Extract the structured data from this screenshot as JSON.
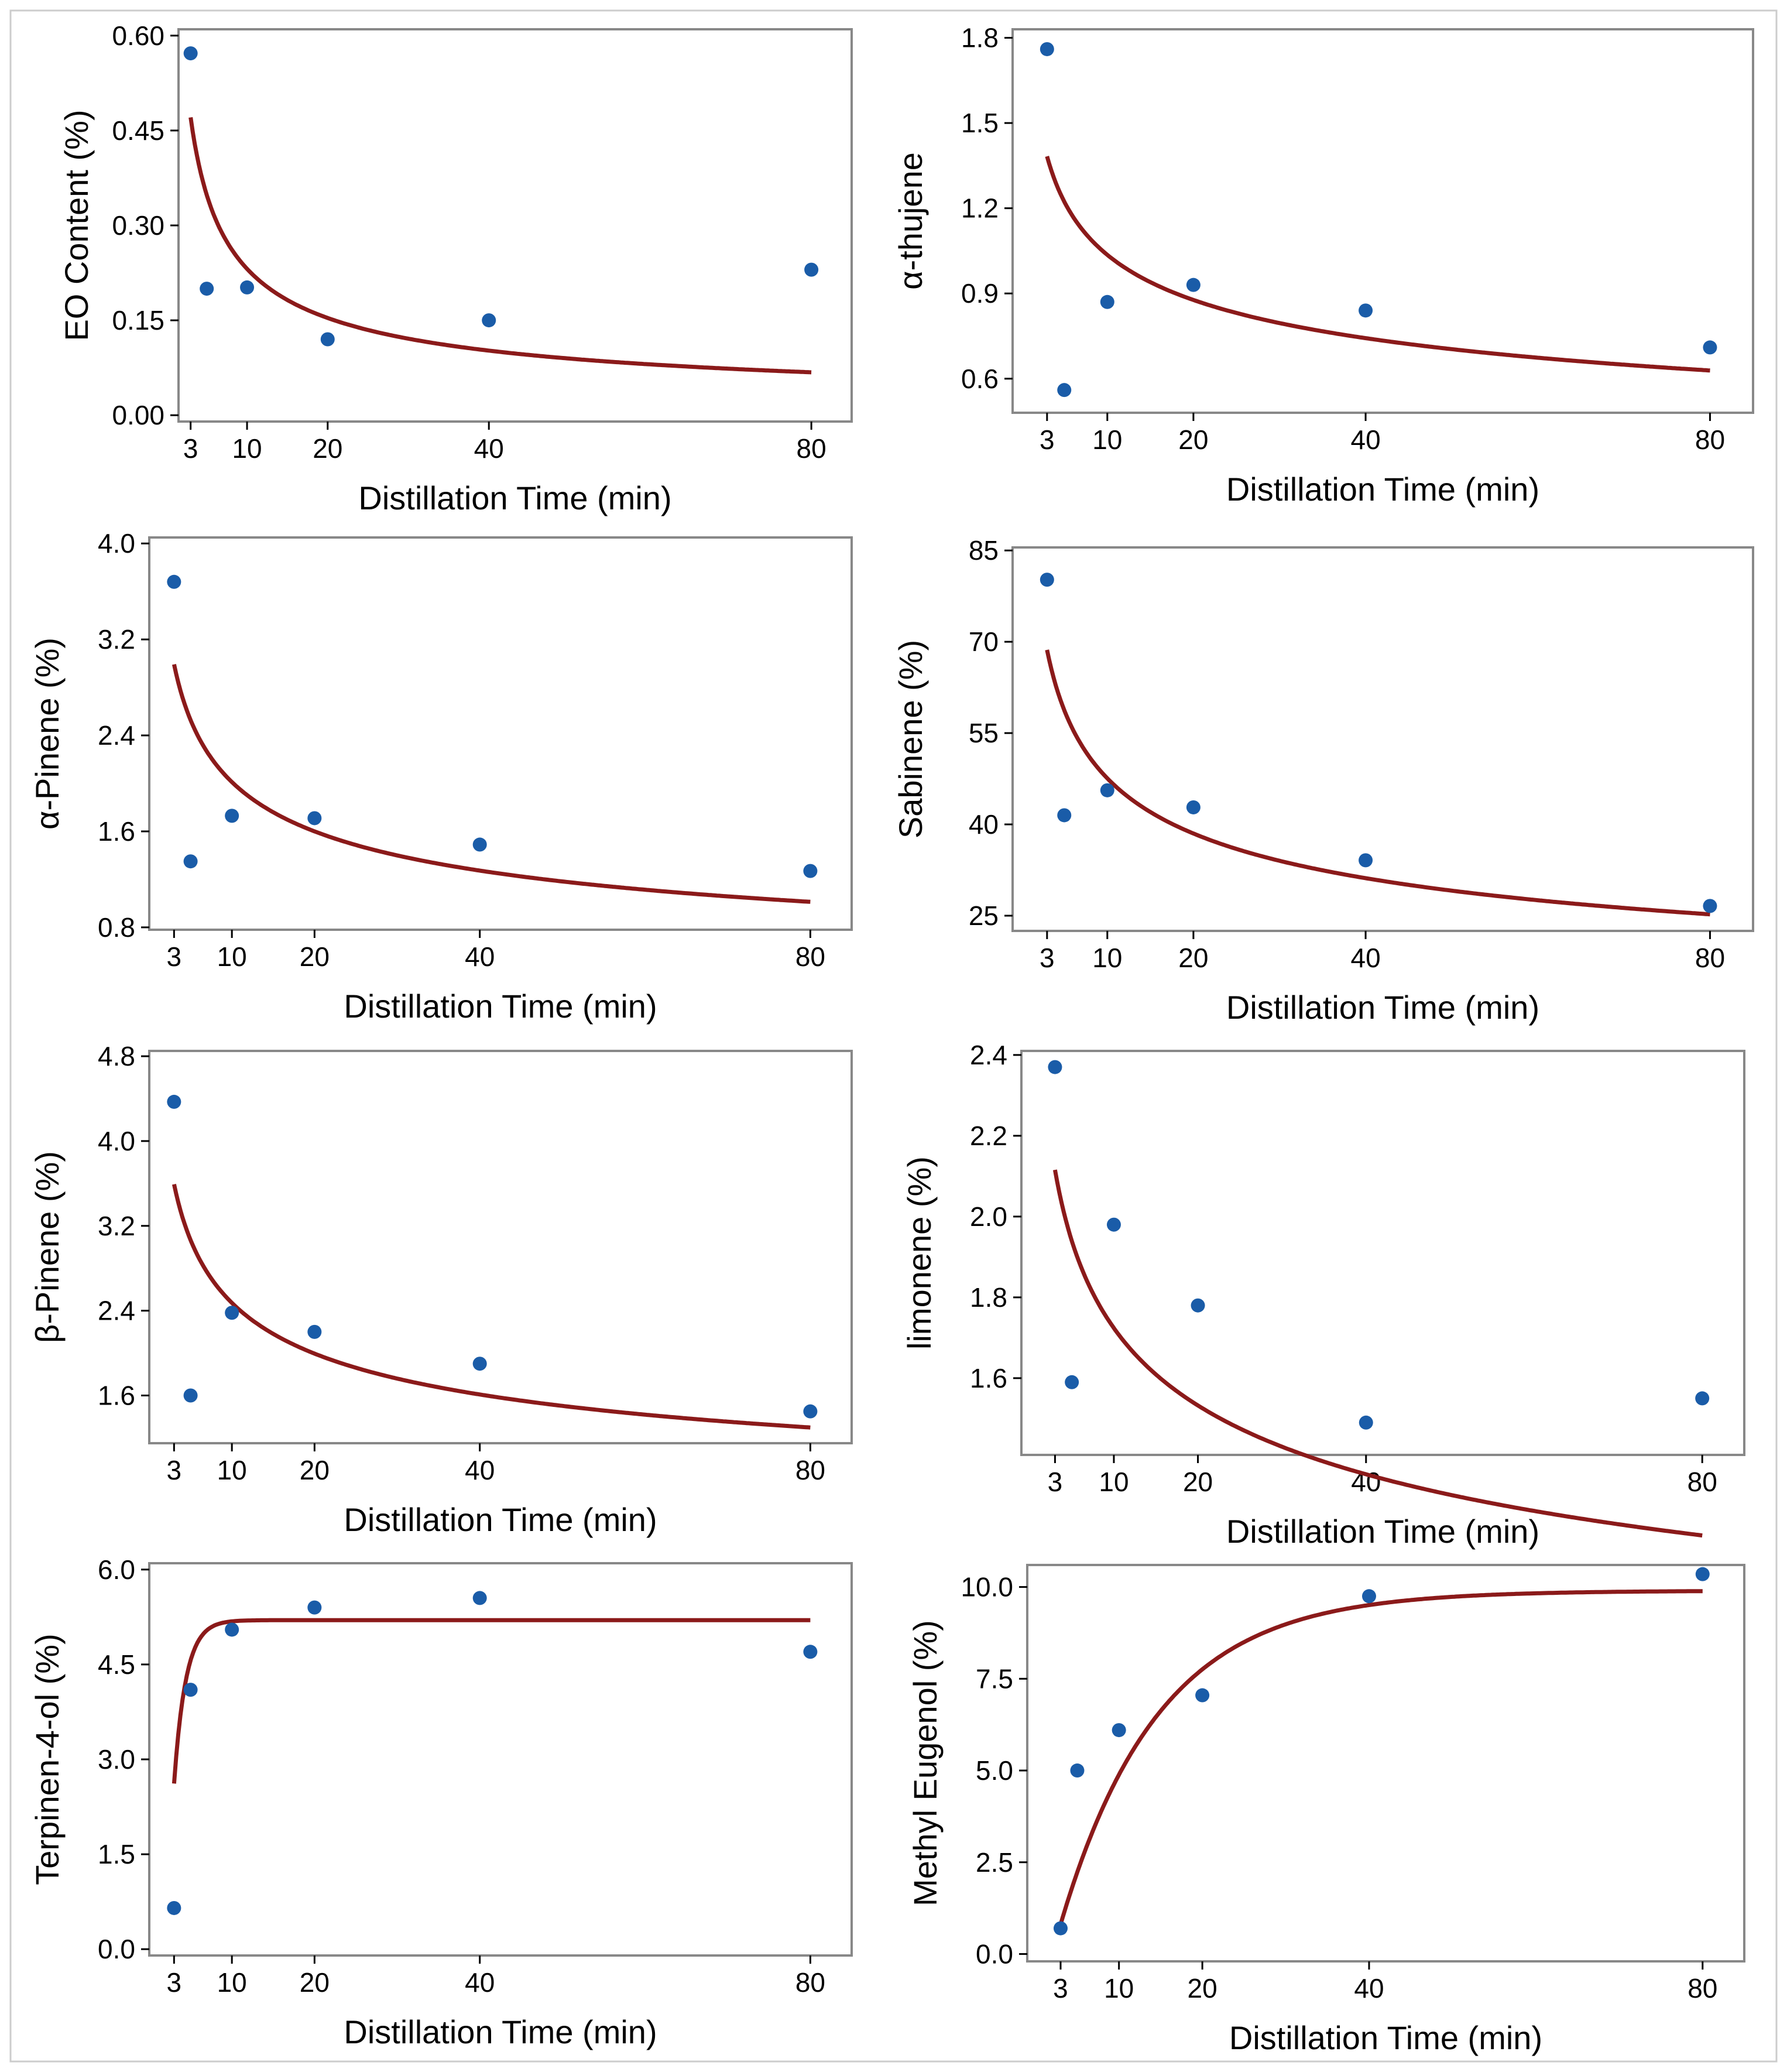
{
  "colors": {
    "points": "#1a5ca8",
    "fit_line": "#8b1a1a",
    "frame": "#888888",
    "background": "#ffffff"
  },
  "chart_data": [
    {
      "type": "scatter",
      "ylabel": "EO Content (%)",
      "xlabel": "Distillation Time (min)",
      "xticks": [
        3,
        10,
        20,
        40,
        80
      ],
      "yticks": [
        0.0,
        0.15,
        0.3,
        0.45,
        0.6
      ],
      "ytick_labels": [
        "0.00",
        "0.15",
        "0.30",
        "0.45",
        "0.60"
      ],
      "xlim": [
        1.5,
        85
      ],
      "ylim": [
        -0.01,
        0.61
      ],
      "x": [
        3,
        5,
        10,
        20,
        40,
        80
      ],
      "y": [
        0.572,
        0.2,
        0.202,
        0.12,
        0.15,
        0.23
      ],
      "fit": {
        "model": "power",
        "a": 0.9,
        "b": -0.59,
        "x_range": [
          3,
          80
        ]
      }
    },
    {
      "type": "scatter",
      "ylabel": "α-thujene",
      "xlabel": "Distillation Time (min)",
      "xticks": [
        3,
        10,
        20,
        40,
        80
      ],
      "yticks": [
        0.6,
        0.9,
        1.2,
        1.5,
        1.8
      ],
      "ytick_labels": [
        "0.6",
        "0.9",
        "1.2",
        "1.5",
        "1.8"
      ],
      "xlim": [
        -1,
        85
      ],
      "ylim": [
        0.48,
        1.83
      ],
      "x": [
        3,
        5,
        10,
        20,
        40,
        80
      ],
      "y": [
        1.76,
        0.56,
        0.87,
        0.93,
        0.84,
        0.71
      ],
      "fit": {
        "model": "power",
        "a": 1.8,
        "b": -0.24,
        "x_range": [
          3,
          80
        ]
      }
    },
    {
      "type": "scatter",
      "ylabel": "α-Pinene (%)",
      "xlabel": "Distillation Time (min)",
      "xticks": [
        3,
        10,
        20,
        40,
        80
      ],
      "yticks": [
        0.8,
        1.6,
        2.4,
        3.2,
        4.0
      ],
      "ytick_labels": [
        "0.8",
        "1.6",
        "2.4",
        "3.2",
        "4.0"
      ],
      "xlim": [
        0,
        85
      ],
      "ylim": [
        0.78,
        4.05
      ],
      "x": [
        3,
        5,
        10,
        20,
        40,
        80
      ],
      "y": [
        3.68,
        1.35,
        1.73,
        1.71,
        1.49,
        1.27
      ],
      "fit": {
        "model": "power",
        "a": 4.3,
        "b": -0.33,
        "x_range": [
          3,
          80
        ]
      }
    },
    {
      "type": "scatter",
      "ylabel": "Sabinene (%)",
      "xlabel": "Distillation Time (min)",
      "xticks": [
        3,
        10,
        20,
        40,
        80
      ],
      "yticks": [
        25,
        40,
        55,
        70,
        85
      ],
      "ytick_labels": [
        "25",
        "40",
        "55",
        "70",
        "85"
      ],
      "xlim": [
        -1,
        85
      ],
      "ylim": [
        22.5,
        85.5
      ],
      "x": [
        3,
        5,
        10,
        20,
        40,
        80
      ],
      "y": [
        80.2,
        41.5,
        45.6,
        42.8,
        34.1,
        26.6
      ],
      "fit": {
        "model": "power",
        "a": 96,
        "b": -0.305,
        "x_range": [
          3,
          80
        ]
      }
    },
    {
      "type": "scatter",
      "ylabel": "β-Pinene (%)",
      "xlabel": "Distillation Time (min)",
      "xticks": [
        3,
        10,
        20,
        40,
        80
      ],
      "yticks": [
        1.6,
        2.4,
        3.2,
        4.0,
        4.8
      ],
      "ytick_labels": [
        "1.6",
        "2.4",
        "3.2",
        "4.0",
        "4.8"
      ],
      "xlim": [
        0,
        85
      ],
      "ylim": [
        1.15,
        4.85
      ],
      "x": [
        3,
        5,
        10,
        20,
        40,
        80
      ],
      "y": [
        4.37,
        1.6,
        2.38,
        2.2,
        1.9,
        1.45
      ],
      "fit": {
        "model": "power",
        "a": 5.05,
        "b": -0.31,
        "x_range": [
          3,
          80
        ]
      }
    },
    {
      "type": "scatter",
      "ylabel": "limonene (%)",
      "xlabel": "Distillation Time (min)",
      "xticks": [
        3,
        10,
        20,
        40,
        80
      ],
      "yticks": [
        1.6,
        1.8,
        2.0,
        2.2,
        2.4
      ],
      "ytick_labels": [
        "1.6",
        "1.8",
        "2.0",
        "2.2",
        "2.4"
      ],
      "xlim": [
        -1,
        85
      ],
      "ylim": [
        1.41,
        2.41
      ],
      "x": [
        3,
        5,
        10,
        20,
        40,
        80
      ],
      "y": [
        2.37,
        1.59,
        1.98,
        1.78,
        1.49,
        1.55
      ],
      "fit": {
        "model": "power",
        "a": 2.55,
        "b": -0.17,
        "x_range": [
          3,
          80
        ]
      }
    },
    {
      "type": "scatter",
      "ylabel": "Terpinen-4-ol (%)",
      "xlabel": "Distillation Time (min)",
      "xticks": [
        3,
        10,
        20,
        40,
        80
      ],
      "yticks": [
        0.0,
        1.5,
        3.0,
        4.5,
        6.0
      ],
      "ytick_labels": [
        "0.0",
        "1.5",
        "3.0",
        "4.5",
        "6.0"
      ],
      "xlim": [
        0,
        85
      ],
      "ylim": [
        -0.1,
        6.1
      ],
      "x": [
        3,
        5,
        10,
        20,
        40,
        80
      ],
      "y": [
        0.65,
        4.1,
        5.05,
        5.4,
        5.55,
        4.7
      ],
      "fit": {
        "model": "rise",
        "a": 5.2,
        "b": 0.7,
        "x_range": [
          3,
          80
        ]
      }
    },
    {
      "type": "scatter",
      "ylabel": "Methyl Eugenol (%)",
      "xlabel": "Distillation Time (min)",
      "xticks": [
        3,
        10,
        20,
        40,
        80
      ],
      "yticks": [
        0.0,
        2.5,
        5.0,
        7.5,
        10.0
      ],
      "ytick_labels": [
        "0.0",
        "2.5",
        "5.0",
        "7.5",
        "10.0"
      ],
      "xlim": [
        -1,
        85
      ],
      "ylim": [
        -0.2,
        10.6
      ],
      "x": [
        3,
        5,
        10,
        20,
        40,
        80
      ],
      "y": [
        0.7,
        5.0,
        6.1,
        7.05,
        9.75,
        10.35
      ],
      "fit": {
        "model": "rise",
        "a": 9.9,
        "b": 0.085,
        "x_range": [
          3,
          80
        ]
      }
    }
  ]
}
